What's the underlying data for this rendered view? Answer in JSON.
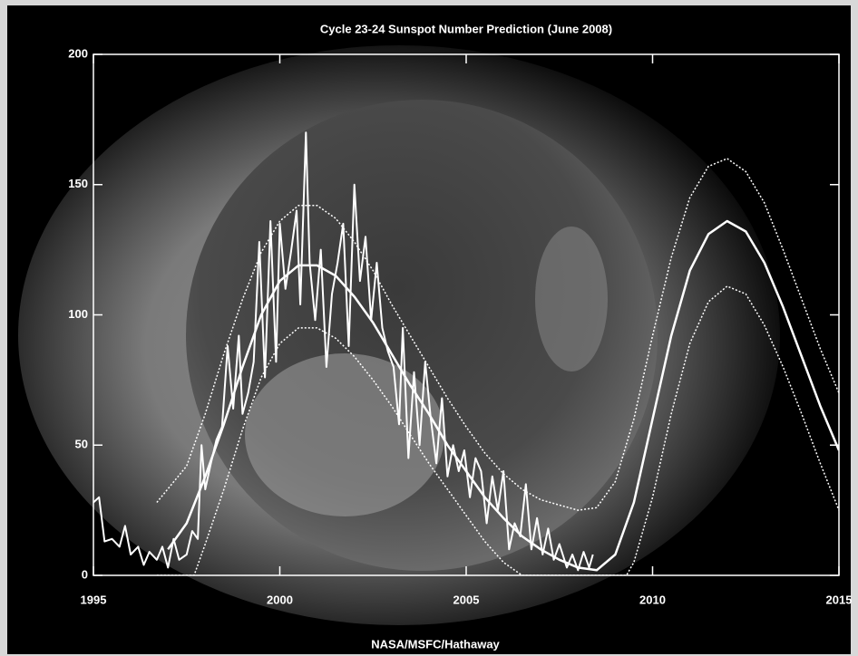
{
  "chart_data": {
    "type": "line",
    "title": "Cycle 23-24 Sunspot Number Prediction (June 2008)",
    "credit": "NASA/MSFC/Hathaway",
    "xlim": [
      1995,
      2015
    ],
    "xticks": [
      1995,
      2000,
      2005,
      2010,
      2015
    ],
    "ylim": [
      0,
      200
    ],
    "yticks": [
      0,
      50,
      100,
      150,
      200
    ],
    "series": [
      {
        "color": "#ffffff",
        "line_style": "solid",
        "width": 2,
        "x": [
          1995.0,
          1995.15,
          1995.3,
          1995.5,
          1995.7,
          1995.85,
          1996.0,
          1996.2,
          1996.35,
          1996.5,
          1996.7,
          1996.85,
          1997.0,
          1997.15,
          1997.3,
          1997.5,
          1997.65,
          1997.8,
          1997.9,
          1998.0,
          1998.15,
          1998.3,
          1998.45,
          1998.6,
          1998.75,
          1998.9,
          1999.0,
          1999.15,
          1999.3,
          1999.45,
          1999.6,
          1999.75,
          1999.9,
          2000.0,
          2000.15,
          2000.3,
          2000.45,
          2000.55,
          2000.7,
          2000.8,
          2000.95,
          2001.1,
          2001.25,
          2001.4,
          2001.55,
          2001.7,
          2001.85,
          2002.0,
          2002.15,
          2002.3,
          2002.45,
          2002.6,
          2002.75,
          2002.9,
          2003.05,
          2003.2,
          2003.3,
          2003.45,
          2003.6,
          2003.75,
          2003.9,
          2004.05,
          2004.2,
          2004.35,
          2004.5,
          2004.65,
          2004.8,
          2004.95,
          2005.1,
          2005.25,
          2005.4,
          2005.55,
          2005.7,
          2005.85,
          2006.0,
          2006.15,
          2006.3,
          2006.45,
          2006.6,
          2006.75,
          2006.9,
          2007.05,
          2007.2,
          2007.35,
          2007.5,
          2007.7,
          2007.85,
          2008.0,
          2008.15,
          2008.3,
          2008.4
        ],
        "values": [
          28,
          30,
          13,
          14,
          11,
          19,
          8,
          11,
          4,
          9,
          6,
          11,
          3,
          14,
          6,
          8,
          17,
          14,
          50,
          33,
          43,
          52,
          57,
          88,
          64,
          92,
          62,
          70,
          82,
          128,
          76,
          136,
          82,
          135,
          110,
          124,
          140,
          104,
          170,
          120,
          98,
          125,
          80,
          108,
          120,
          135,
          88,
          150,
          113,
          130,
          98,
          120,
          95,
          86,
          80,
          58,
          95,
          45,
          78,
          50,
          82,
          60,
          43,
          68,
          38,
          50,
          40,
          48,
          30,
          45,
          40,
          20,
          38,
          25,
          40,
          10,
          20,
          15,
          35,
          10,
          22,
          8,
          18,
          6,
          12,
          3,
          8,
          2,
          9,
          3,
          8
        ]
      },
      {
        "color": "#ffffff",
        "line_style": "solid",
        "width": 2.5,
        "x": [
          1997.0,
          1997.5,
          1998.0,
          1998.5,
          1999.0,
          1999.5,
          2000.0,
          2000.5,
          2001.0,
          2001.5,
          2002.0,
          2002.5,
          2003.0,
          2003.5,
          2004.0,
          2004.5,
          2005.0,
          2005.5,
          2006.0,
          2006.5,
          2007.0,
          2007.5,
          2008.0,
          2008.5,
          2009.0,
          2009.5,
          2010.0,
          2010.5,
          2011.0,
          2011.5,
          2012.0,
          2012.5,
          2013.0,
          2013.5,
          2014.0,
          2014.5,
          2015.0
        ],
        "values": [
          10,
          20,
          38,
          58,
          80,
          100,
          113,
          119,
          119,
          115,
          107,
          97,
          85,
          73,
          62,
          50,
          40,
          30,
          22,
          15,
          10,
          6,
          3,
          2,
          8,
          28,
          60,
          92,
          117,
          131,
          136,
          132,
          120,
          103,
          84,
          65,
          48
        ]
      },
      {
        "color": "#ffffff",
        "line_style": "dotted",
        "width": 1.5,
        "x": [
          1996.7,
          1997.5,
          1998.0,
          1998.5,
          1999.0,
          1999.5,
          2000.0,
          2000.5,
          2001.0,
          2001.5,
          2002.0,
          2002.5,
          2003.0,
          2003.5,
          2004.0,
          2004.5,
          2005.0,
          2005.5,
          2006.0,
          2006.5,
          2007.0,
          2007.5,
          2008.0,
          2008.5,
          2009.0,
          2009.5,
          2010.0,
          2010.5,
          2011.0,
          2011.5,
          2012.0,
          2012.5,
          2013.0,
          2013.5,
          2014.0,
          2014.5,
          2015.0
        ],
        "values": [
          28,
          42,
          62,
          85,
          106,
          124,
          136,
          142,
          142,
          137,
          128,
          117,
          104,
          92,
          80,
          68,
          57,
          47,
          39,
          33,
          29,
          27,
          25,
          26,
          36,
          60,
          92,
          122,
          145,
          157,
          160,
          155,
          143,
          125,
          106,
          87,
          70
        ]
      },
      {
        "color": "#ffffff",
        "line_style": "dotted",
        "width": 1.5,
        "x": [
          1996.7,
          1997.5,
          1997.7,
          1998.0,
          1998.5,
          1999.0,
          1999.5,
          2000.0,
          2000.5,
          2001.0,
          2001.5,
          2002.0,
          2002.5,
          2003.0,
          2003.5,
          2004.0,
          2004.5,
          2005.0,
          2005.5,
          2006.0,
          2006.5,
          2009.3,
          2009.5,
          2010.0,
          2010.5,
          2011.0,
          2011.5,
          2012.0,
          2012.5,
          2013.0,
          2013.5,
          2014.0,
          2014.5,
          2015.0
        ],
        "values": [
          0,
          0,
          0,
          12,
          33,
          56,
          76,
          89,
          95,
          95,
          91,
          84,
          75,
          65,
          54,
          43,
          33,
          23,
          13,
          5,
          0,
          0,
          5,
          30,
          62,
          89,
          105,
          111,
          108,
          96,
          80,
          62,
          43,
          25
        ]
      }
    ]
  }
}
